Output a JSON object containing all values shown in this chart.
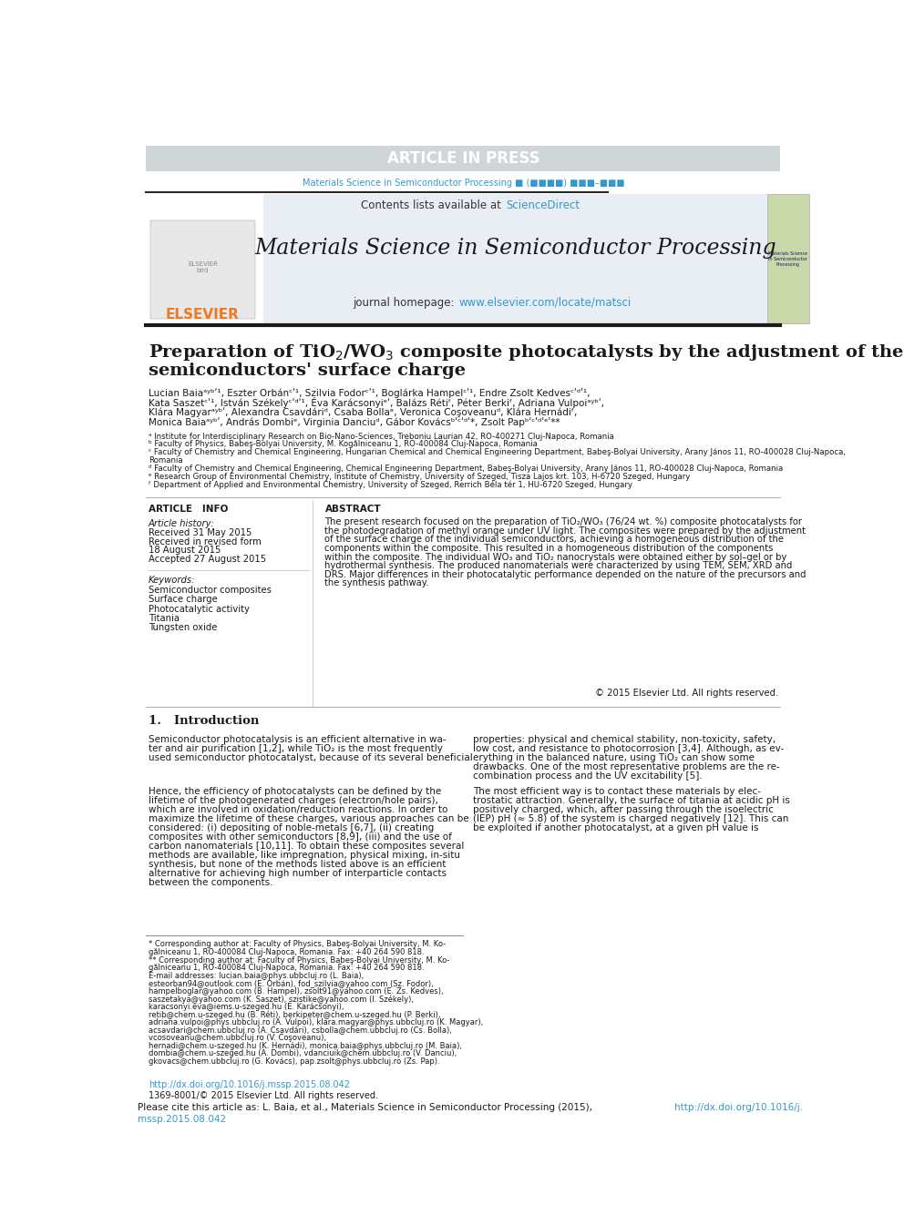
{
  "fig_width": 9.92,
  "fig_height": 13.23,
  "bg_color": "#ffffff",
  "header_bar_color": "#d0d5d8",
  "header_text": "ARTICLE IN PRESS",
  "header_text_color": "#ffffff",
  "journal_line_text": "Materials Science in Semiconductor Processing ■ (■■■■) ■■■–■■■",
  "elsevier_color": "#f07820",
  "elsevier_text": "ELSEVIER",
  "journal_header_bg": "#e8eef4",
  "journal_title": "Materials Science in Semiconductor Processing",
  "contents_text": "Contents lists available at ",
  "sciencedirect_text": "ScienceDirect",
  "sciencedirect_color": "#3399cc",
  "homepage_text": "journal homepage: ",
  "homepage_url": "www.elsevier.com/locate/matsci",
  "article_info_title": "ARTICLE   INFO",
  "abstract_title": "ABSTRACT",
  "article_history": "Article history:",
  "received": "Received 31 May 2015",
  "received_revised": "Received in revised form",
  "received_revised2": "18 August 2015",
  "accepted": "Accepted 27 August 2015",
  "keywords_title": "Keywords:",
  "keywords": [
    "Semiconductor composites",
    "Surface charge",
    "Photocatalytic activity",
    "Titania",
    "Tungsten oxide"
  ],
  "abstract_text": "The present research focused on the preparation of TiO₂/WO₃ (76/24 wt. %) composite photocatalysts for\nthe photodegradation of methyl orange under UV light. The composites were prepared by the adjustment\nof the surface charge of the individual semiconductors, achieving a homogeneous distribution of the\ncomponents within the composite. This resulted in a homogeneous distribution of the components\nwithin the composite. The individual WO₃ and TiO₂ nanocrystals were obtained either by sol–gel or by\nhydrothermal synthesis. The produced nanomaterials were characterized by using TEM, SEM, XRD and\nDRS. Major differences in their photocatalytic performance depended on the nature of the precursors and\nthe synthesis pathway.",
  "copyright_text": "© 2015 Elsevier Ltd. All rights reserved.",
  "section1_title": "1.   Introduction",
  "affiliations": [
    "ᵃ Institute for Interdisciplinary Research on Bio-Nano-Sciences, Treboniu Laurian 42, RO-400271 Cluj-Napoca, Romania",
    "ᵇ Faculty of Physics, Babeş-Bolyai University, M. Kogălniceanu 1, RO-400084 Cluj-Napoca, Romania",
    "ᶜ Faculty of Chemistry and Chemical Engineering, Hungarian Chemical and Chemical Engineering Department, Babeş-Bolyai University, Arany János 11, RO-400028 Cluj-Napoca,",
    "Romania",
    "ᵈ Faculty of Chemistry and Chemical Engineering, Chemical Engineering Department, Babeş-Bolyai University, Arany János 11, RO-400028 Cluj-Napoca, Romania",
    "ᵉ Research Group of Environmental Chemistry, Institute of Chemistry, University of Szeged, Tisza Lajos krt. 103, H-6720 Szeged, Hungary",
    "ᶠ Department of Applied and Environmental Chemistry, University of Szeged, Rerrich Béla tér 1, HU-6720 Szeged, Hungary"
  ],
  "link_color": "#3399cc",
  "cite_bg": "#e8eef4"
}
